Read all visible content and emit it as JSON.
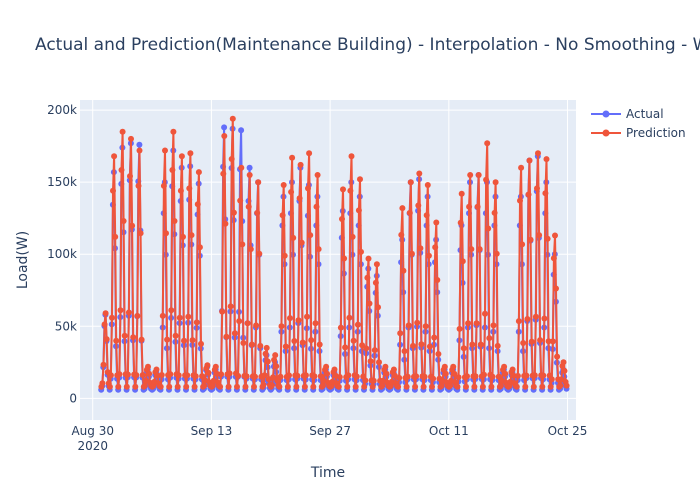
{
  "chart_data": {
    "type": "line",
    "title": "Actual and Prediction(Maintenance Building) - Interpolation - No Smoothing - Without",
    "xlabel": "Time",
    "ylabel": "Load(W)",
    "x_ticks": [
      {
        "label": "Aug 30",
        "sublabel": "2020",
        "date": "2020-08-30"
      },
      {
        "label": "Sep 13",
        "sublabel": "",
        "date": "2020-09-13"
      },
      {
        "label": "Sep 27",
        "sublabel": "",
        "date": "2020-09-27"
      },
      {
        "label": "Oct 11",
        "sublabel": "",
        "date": "2020-10-11"
      },
      {
        "label": "Oct 25",
        "sublabel": "",
        "date": "2020-10-25"
      }
    ],
    "y_ticks": [
      {
        "label": "0",
        "value": 0
      },
      {
        "label": "50k",
        "value": 50000
      },
      {
        "label": "100k",
        "value": 100000
      },
      {
        "label": "150k",
        "value": 150000
      },
      {
        "label": "200k",
        "value": 200000
      }
    ],
    "xlim": [
      "2020-08-28T12:00",
      "2020-10-26T00:00"
    ],
    "ylim": [
      -15000,
      207000
    ],
    "grid": true,
    "legend_position": "top-right",
    "colors": {
      "actual": "#636efa",
      "prediction": "#ef553b",
      "plot_bg": "#e5ecf6"
    },
    "series": [
      {
        "name": "Actual",
        "daily_peaks": [
          [
            1,
            "2020-08-31",
            58000
          ],
          [
            2,
            "2020-09-01",
            157000
          ],
          [
            3,
            "2020-09-02",
            174000
          ],
          [
            4,
            "2020-09-03",
            177000
          ],
          [
            5,
            "2020-09-04",
            176000
          ],
          [
            6,
            "2020-09-05",
            20000
          ],
          [
            7,
            "2020-09-06",
            18000
          ],
          [
            8,
            "2020-09-07",
            150000
          ],
          [
            9,
            "2020-09-08",
            172000
          ],
          [
            10,
            "2020-09-09",
            160000
          ],
          [
            11,
            "2020-09-10",
            161000
          ],
          [
            12,
            "2020-09-11",
            149000
          ],
          [
            13,
            "2020-09-12",
            22000
          ],
          [
            14,
            "2020-09-13",
            20000
          ],
          [
            15,
            "2020-09-14",
            188000
          ],
          [
            16,
            "2020-09-15",
            187000
          ],
          [
            17,
            "2020-09-16",
            186000
          ],
          [
            18,
            "2020-09-17",
            160000
          ],
          [
            19,
            "2020-09-18",
            150000
          ],
          [
            20,
            "2020-09-19",
            30000
          ],
          [
            21,
            "2020-09-20",
            25000
          ],
          [
            22,
            "2020-09-21",
            140000
          ],
          [
            23,
            "2020-09-22",
            150000
          ],
          [
            24,
            "2020-09-23",
            160000
          ],
          [
            25,
            "2020-09-24",
            148000
          ],
          [
            26,
            "2020-09-25",
            140000
          ],
          [
            27,
            "2020-09-26",
            20000
          ],
          [
            28,
            "2020-09-27",
            18000
          ],
          [
            29,
            "2020-09-28",
            130000
          ],
          [
            30,
            "2020-09-29",
            150000
          ],
          [
            31,
            "2020-09-30",
            140000
          ],
          [
            32,
            "2020-10-01",
            90000
          ],
          [
            33,
            "2020-10-02",
            85000
          ],
          [
            34,
            "2020-10-03",
            20000
          ],
          [
            35,
            "2020-10-04",
            18000
          ],
          [
            36,
            "2020-10-05",
            110000
          ],
          [
            37,
            "2020-10-06",
            150000
          ],
          [
            38,
            "2020-10-07",
            152000
          ],
          [
            39,
            "2020-10-08",
            140000
          ],
          [
            40,
            "2020-10-09",
            110000
          ],
          [
            41,
            "2020-10-10",
            20000
          ],
          [
            42,
            "2020-10-11",
            20000
          ],
          [
            43,
            "2020-10-12",
            120000
          ],
          [
            44,
            "2020-10-13",
            150000
          ],
          [
            45,
            "2020-10-14",
            155000
          ],
          [
            46,
            "2020-10-15",
            150000
          ],
          [
            47,
            "2020-10-16",
            140000
          ],
          [
            48,
            "2020-10-17",
            20000
          ],
          [
            49,
            "2020-10-18",
            18000
          ],
          [
            50,
            "2020-10-19",
            140000
          ],
          [
            51,
            "2020-10-20",
            165000
          ],
          [
            52,
            "2020-10-21",
            168000
          ],
          [
            53,
            "2020-10-22",
            150000
          ],
          [
            54,
            "2020-10-23",
            100000
          ],
          [
            55,
            "2020-10-24",
            20000
          ]
        ],
        "daily_min": 6000
      },
      {
        "name": "Prediction",
        "daily_peaks": [
          [
            1,
            "2020-08-31",
            59000
          ],
          [
            2,
            "2020-09-01",
            168000
          ],
          [
            3,
            "2020-09-02",
            185000
          ],
          [
            4,
            "2020-09-03",
            180000
          ],
          [
            5,
            "2020-09-04",
            172000
          ],
          [
            6,
            "2020-09-05",
            22000
          ],
          [
            7,
            "2020-09-06",
            20000
          ],
          [
            8,
            "2020-09-07",
            172000
          ],
          [
            9,
            "2020-09-08",
            185000
          ],
          [
            10,
            "2020-09-09",
            168000
          ],
          [
            11,
            "2020-09-10",
            170000
          ],
          [
            12,
            "2020-09-11",
            157000
          ],
          [
            13,
            "2020-09-12",
            23000
          ],
          [
            14,
            "2020-09-13",
            22000
          ],
          [
            15,
            "2020-09-14",
            182000
          ],
          [
            16,
            "2020-09-15",
            194000
          ],
          [
            17,
            "2020-09-16",
            160000
          ],
          [
            18,
            "2020-09-17",
            155000
          ],
          [
            19,
            "2020-09-18",
            150000
          ],
          [
            20,
            "2020-09-19",
            35000
          ],
          [
            21,
            "2020-09-20",
            30000
          ],
          [
            22,
            "2020-09-21",
            148000
          ],
          [
            23,
            "2020-09-22",
            167000
          ],
          [
            24,
            "2020-09-23",
            162000
          ],
          [
            25,
            "2020-09-24",
            170000
          ],
          [
            26,
            "2020-09-25",
            155000
          ],
          [
            27,
            "2020-09-26",
            22000
          ],
          [
            28,
            "2020-09-27",
            20000
          ],
          [
            29,
            "2020-09-28",
            145000
          ],
          [
            30,
            "2020-09-29",
            168000
          ],
          [
            31,
            "2020-09-30",
            152000
          ],
          [
            32,
            "2020-10-01",
            97000
          ],
          [
            33,
            "2020-10-02",
            93000
          ],
          [
            34,
            "2020-10-03",
            22000
          ],
          [
            35,
            "2020-10-04",
            20000
          ],
          [
            36,
            "2020-10-05",
            132000
          ],
          [
            37,
            "2020-10-06",
            150000
          ],
          [
            38,
            "2020-10-07",
            156000
          ],
          [
            39,
            "2020-10-08",
            148000
          ],
          [
            40,
            "2020-10-09",
            122000
          ],
          [
            41,
            "2020-10-10",
            22000
          ],
          [
            42,
            "2020-10-11",
            22000
          ],
          [
            43,
            "2020-10-12",
            142000
          ],
          [
            44,
            "2020-10-13",
            155000
          ],
          [
            45,
            "2020-10-14",
            155000
          ],
          [
            46,
            "2020-10-15",
            177000
          ],
          [
            47,
            "2020-10-16",
            150000
          ],
          [
            48,
            "2020-10-17",
            22000
          ],
          [
            49,
            "2020-10-18",
            20000
          ],
          [
            50,
            "2020-10-19",
            160000
          ],
          [
            51,
            "2020-10-20",
            165000
          ],
          [
            52,
            "2020-10-21",
            170000
          ],
          [
            53,
            "2020-10-22",
            166000
          ],
          [
            54,
            "2020-10-23",
            113000
          ],
          [
            55,
            "2020-10-24",
            25000
          ]
        ],
        "daily_min": 8000
      }
    ]
  }
}
